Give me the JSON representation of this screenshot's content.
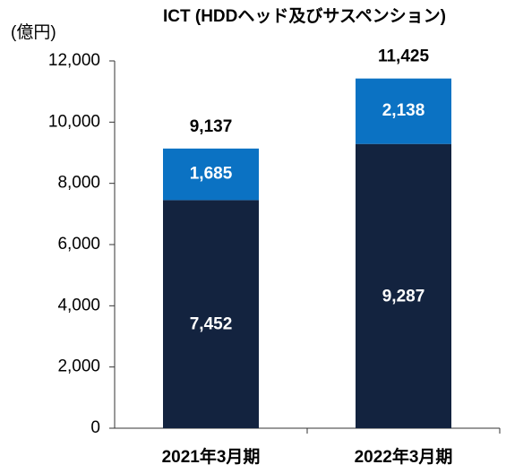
{
  "chart_data": {
    "type": "stacked_bar",
    "title": "ICT (HDDヘッド及びサスペンション)",
    "y_axis_label": "(億円)",
    "categories": [
      "2021年3月期",
      "2022年3月期"
    ],
    "series": [
      {
        "color": "#13233f",
        "values": [
          7452,
          9287
        ],
        "value_labels": [
          "7,452",
          "9,287"
        ]
      },
      {
        "color": "#0b72c3",
        "values": [
          1685,
          2138
        ],
        "value_labels": [
          "1,685",
          "2,138"
        ]
      }
    ],
    "totals": [
      9137,
      11425
    ],
    "total_labels": [
      "9,137",
      "11,425"
    ],
    "ylim": [
      0,
      12000
    ],
    "yticks": [
      0,
      {
        "value": 2000,
        "label": "2,000"
      },
      {
        "value": 4000,
        "label": "4,000"
      },
      {
        "value": 6000,
        "label": "6,000"
      },
      {
        "value": 8000,
        "label": "8,000"
      },
      {
        "value": 10000,
        "label": "10,000"
      },
      {
        "value": 12000,
        "label": "12,000"
      }
    ],
    "grid": false
  }
}
